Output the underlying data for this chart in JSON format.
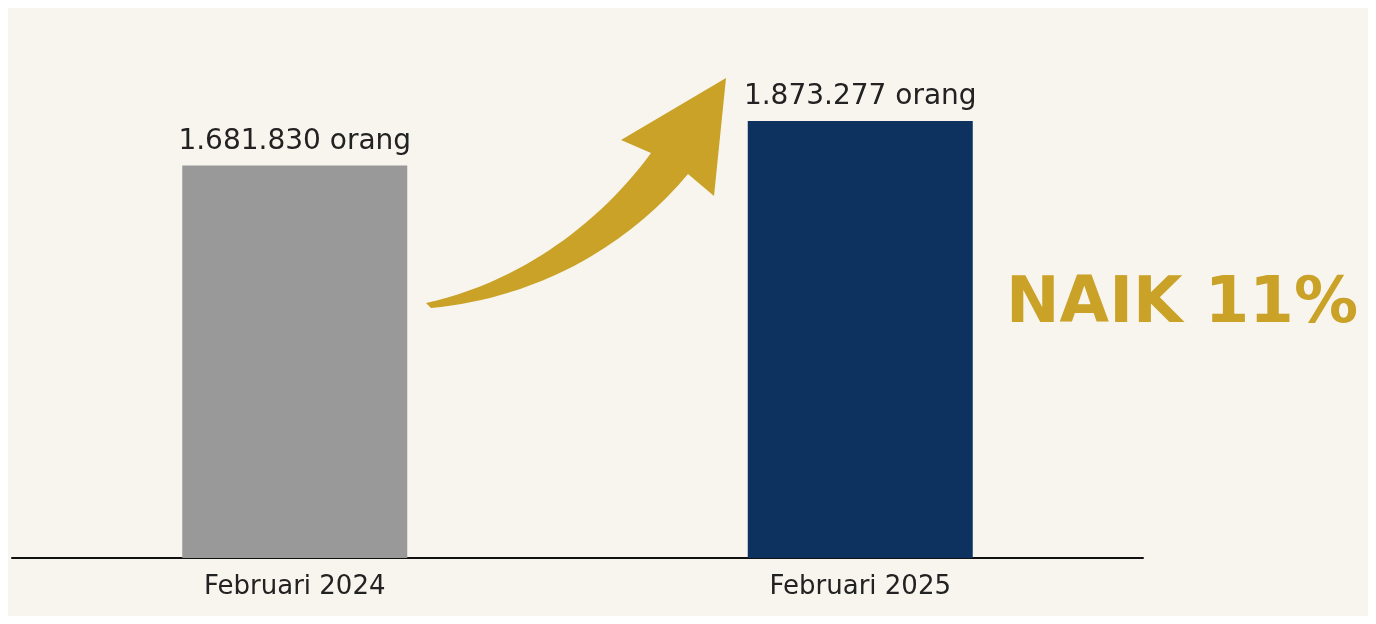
{
  "chart_data": {
    "type": "bar",
    "categories": [
      "Februari 2024",
      "Februari 2025"
    ],
    "values": [
      1681830,
      1873277
    ],
    "value_labels": [
      "1.681.830 orang",
      "1.873.277 orang"
    ],
    "colors": [
      "#999999",
      "#0d3260"
    ],
    "annotations": [
      "NAIK 11%"
    ]
  }
}
